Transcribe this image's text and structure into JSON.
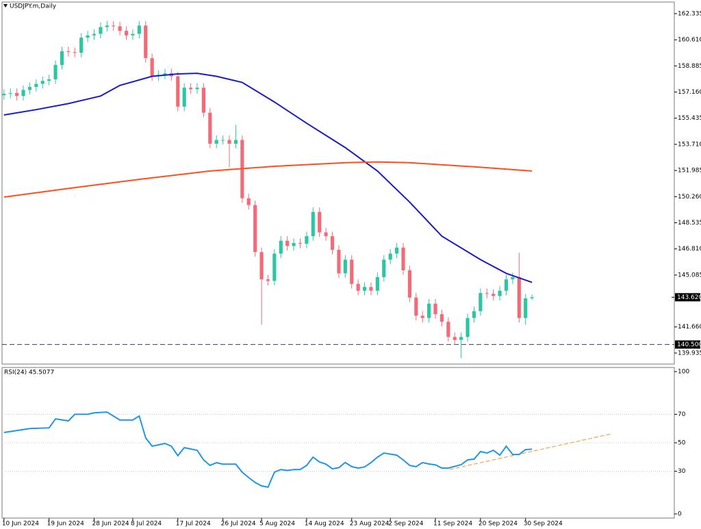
{
  "chart_data": [
    {
      "type": "candlestick",
      "title": "USDJPY.m,Daily",
      "categories": [
        "10 Jun 2024",
        null,
        null,
        null,
        null,
        null,
        null,
        "19 Jun 2024",
        null,
        null,
        null,
        null,
        null,
        null,
        "28 Jun 2024",
        null,
        null,
        null,
        null,
        null,
        "8 Jul 2024",
        null,
        null,
        null,
        null,
        null,
        null,
        "17 Jul 2024",
        null,
        null,
        null,
        null,
        null,
        null,
        "26 Jul 2024",
        null,
        null,
        null,
        null,
        null,
        "5 Aug 2024",
        null,
        null,
        null,
        null,
        null,
        null,
        "14 Aug 2024",
        null,
        null,
        null,
        null,
        null,
        null,
        "23 Aug 2024",
        null,
        null,
        null,
        null,
        null,
        "2 Sep 2024",
        null,
        null,
        null,
        null,
        null,
        null,
        "11 Sep 2024",
        null,
        null,
        null,
        null,
        null,
        null,
        "20 Sep 2024",
        null,
        null,
        null,
        null,
        null,
        null,
        "30 Sep 2024",
        null
      ],
      "open": [
        156.95,
        157.05,
        157.1,
        156.9,
        157.3,
        157.5,
        157.7,
        157.9,
        158.0,
        158.95,
        159.85,
        159.8,
        159.75,
        160.75,
        160.9,
        161.0,
        161.45,
        161.55,
        161.5,
        161.2,
        160.9,
        161.0,
        161.55,
        159.4,
        158.2,
        158.3,
        158.4,
        158.2,
        156.2,
        157.45,
        157.35,
        157.45,
        155.8,
        153.75,
        154.0,
        154.0,
        153.75,
        154.0,
        150.15,
        149.7,
        146.6,
        144.8,
        144.7,
        146.5,
        147.35,
        147.0,
        147.2,
        147.15,
        147.65,
        149.25,
        147.9,
        147.65,
        146.75,
        145.2,
        146.1,
        144.5,
        144.05,
        144.3,
        144.05,
        144.95,
        146.1,
        146.5,
        146.9,
        145.4,
        143.6,
        142.4,
        142.25,
        143.2,
        142.5,
        142.0,
        141.0,
        140.8,
        141.0,
        142.25,
        142.7,
        143.9,
        143.85,
        143.7,
        144.05,
        144.8,
        144.95,
        142.25,
        143.55
      ],
      "high": [
        157.35,
        157.4,
        157.4,
        157.6,
        157.8,
        158.0,
        158.2,
        158.3,
        159.25,
        160.15,
        160.15,
        160.1,
        161.05,
        161.2,
        161.3,
        161.75,
        161.85,
        161.85,
        161.8,
        161.5,
        161.3,
        161.85,
        161.85,
        159.7,
        158.6,
        158.7,
        158.7,
        158.5,
        157.75,
        157.75,
        157.75,
        157.75,
        156.1,
        154.3,
        154.3,
        154.3,
        155.0,
        154.3,
        150.45,
        150.0,
        146.9,
        145.1,
        146.8,
        147.65,
        147.65,
        147.5,
        147.5,
        147.95,
        149.55,
        149.55,
        148.2,
        147.95,
        147.05,
        146.4,
        146.4,
        144.8,
        144.6,
        144.6,
        145.25,
        146.4,
        146.8,
        147.2,
        147.2,
        145.7,
        143.9,
        142.7,
        143.5,
        143.5,
        142.8,
        142.3,
        141.3,
        141.3,
        142.55,
        143.0,
        144.2,
        144.2,
        144.15,
        144.35,
        145.1,
        145.25,
        146.55,
        143.85,
        143.8
      ],
      "low": [
        156.65,
        156.75,
        156.6,
        156.6,
        157.0,
        157.2,
        157.4,
        157.6,
        157.7,
        158.65,
        159.5,
        159.45,
        159.45,
        160.45,
        160.6,
        160.7,
        161.15,
        161.2,
        160.9,
        160.6,
        160.6,
        160.7,
        159.1,
        157.9,
        157.9,
        158.0,
        157.9,
        155.9,
        155.9,
        157.05,
        157.05,
        155.5,
        153.45,
        153.45,
        153.7,
        152.2,
        153.45,
        149.85,
        149.4,
        146.3,
        141.8,
        144.4,
        144.4,
        146.2,
        146.7,
        146.7,
        146.85,
        146.85,
        147.35,
        147.6,
        147.35,
        146.45,
        144.9,
        144.9,
        144.2,
        143.75,
        143.75,
        143.75,
        143.75,
        144.65,
        145.8,
        146.2,
        145.1,
        143.3,
        142.1,
        141.95,
        141.95,
        142.2,
        141.7,
        140.7,
        140.5,
        139.6,
        140.7,
        141.95,
        142.4,
        143.55,
        143.4,
        143.4,
        143.75,
        144.5,
        141.95,
        141.8,
        143.45
      ],
      "close": [
        157.05,
        157.1,
        156.9,
        157.3,
        157.5,
        157.7,
        157.9,
        158.0,
        158.95,
        159.85,
        159.8,
        159.75,
        160.75,
        160.9,
        161.0,
        161.45,
        161.55,
        161.5,
        161.2,
        160.9,
        161.0,
        161.55,
        159.4,
        158.2,
        158.3,
        158.4,
        158.2,
        156.2,
        157.45,
        157.35,
        157.45,
        155.8,
        153.75,
        154.0,
        154.0,
        153.75,
        154.0,
        150.15,
        149.7,
        146.6,
        144.8,
        144.7,
        146.5,
        147.35,
        147.0,
        147.2,
        147.15,
        147.65,
        149.25,
        147.9,
        147.65,
        146.75,
        145.2,
        146.1,
        144.5,
        144.05,
        144.3,
        144.05,
        144.95,
        146.1,
        146.5,
        146.9,
        145.4,
        143.6,
        142.4,
        142.25,
        143.2,
        142.5,
        142.0,
        141.0,
        140.8,
        141.0,
        142.25,
        142.7,
        143.9,
        143.85,
        143.7,
        144.05,
        144.8,
        144.95,
        142.25,
        143.55,
        143.62
      ],
      "up_color": "#2cc7a2",
      "down_color": "#f26b76",
      "series": [
        {
          "color": "#1a1ac8",
          "x": [
            0,
            5,
            10,
            15,
            18,
            23,
            27,
            30,
            33,
            37,
            42,
            47,
            53,
            58,
            63,
            68,
            74,
            78,
            82
          ],
          "values": [
            155.65,
            156.0,
            156.4,
            156.9,
            157.6,
            158.2,
            158.36,
            158.4,
            158.2,
            157.8,
            156.5,
            155.1,
            153.5,
            151.95,
            149.9,
            147.65,
            146.1,
            145.2,
            144.6
          ]
        },
        {
          "color": "#ff4f19",
          "x": [
            0,
            10,
            21,
            32,
            42,
            53,
            58,
            63,
            74,
            82
          ],
          "values": [
            150.23,
            150.8,
            151.4,
            151.95,
            152.26,
            152.5,
            152.55,
            152.5,
            152.2,
            151.95
          ]
        }
      ],
      "xlim": [
        -0.3,
        104.1
      ],
      "ylim": [
        139.21,
        163.1
      ],
      "yticks": [
        162.335,
        {
          "value": 160.61,
          "label": "160.610"
        },
        158.885,
        {
          "value": 157.16,
          "label": "157.160"
        },
        155.435,
        {
          "value": 153.71,
          "label": "153.710"
        },
        151.985,
        {
          "value": 150.26,
          "label": "150.260"
        },
        148.535,
        {
          "value": 146.81,
          "label": "146.810"
        },
        145.085,
        {
          "value": 141.66,
          "label": "141.660"
        },
        139.935
      ],
      "hline": {
        "value": 140.5,
        "label": "140.500"
      },
      "last_price": {
        "value": 143.62,
        "label": "143.620"
      },
      "grid": false
    },
    {
      "type": "line",
      "label": "RSI(24) 45.5077",
      "series": [
        {
          "color": "#1e96e6",
          "x": [
            0,
            4,
            7,
            8,
            10,
            11,
            13,
            14,
            16,
            18,
            20,
            21,
            22,
            23,
            25,
            26,
            27,
            28,
            30,
            31,
            32,
            33,
            34,
            36,
            37,
            38,
            39,
            40,
            41,
            42,
            43,
            44,
            45,
            46,
            47,
            48,
            49,
            50,
            51,
            52,
            53,
            54,
            55,
            56,
            57,
            58,
            59,
            61,
            62,
            63,
            64,
            65,
            66,
            67,
            68,
            69,
            71,
            72,
            73,
            74,
            75,
            76,
            77,
            78,
            79,
            80,
            81,
            82
          ],
          "values": [
            57.2,
            60,
            60.5,
            66.8,
            65.4,
            70,
            70,
            71,
            71.6,
            66,
            66,
            68.8,
            53.4,
            47.6,
            49.5,
            47.6,
            40.9,
            46.6,
            44.7,
            38,
            34.1,
            36,
            35,
            35,
            29.3,
            25.5,
            22.1,
            19.7,
            18.8,
            29.3,
            31.2,
            30.5,
            31.2,
            31.2,
            34.1,
            39.9,
            36.5,
            35,
            31.7,
            32.5,
            36.1,
            33.2,
            32.2,
            33,
            36.1,
            39.9,
            42.8,
            41.3,
            38,
            34.1,
            33.2,
            36.1,
            35.1,
            34.5,
            32.2,
            32.2,
            34.6,
            38,
            38.5,
            43.8,
            42.8,
            44.7,
            41.3,
            47.6,
            41.8,
            41.8,
            45.2,
            45.5
          ]
        }
      ],
      "xlim": [
        -0.3,
        104.1
      ],
      "ylim": [
        -2.9,
        102.9
      ],
      "yticks": [
        100,
        70,
        50,
        30,
        0
      ],
      "levels": [
        70,
        50,
        30
      ]
    }
  ]
}
